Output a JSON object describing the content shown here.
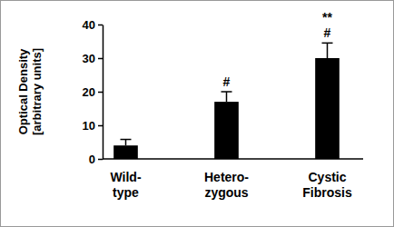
{
  "chart_data": {
    "type": "bar",
    "y_label": "Optical Density\n[arbitrary units]",
    "categories": [
      "Wild-\ntype",
      "Hetero-\nzygous",
      "Cystic\nFibrosis"
    ],
    "values": [
      4,
      17,
      30
    ],
    "errors": [
      1.8,
      3,
      4.5
    ],
    "color": "#000000",
    "ylim": [
      0,
      40
    ],
    "yticks": [
      0,
      10,
      20,
      30,
      40
    ],
    "grid": false,
    "annotations": [
      {
        "text": "#",
        "x": "Hetero-\nzygous"
      },
      {
        "text": "#",
        "x": "Cystic\nFibrosis"
      },
      {
        "text": "**",
        "x": "Cystic\nFibrosis"
      }
    ]
  }
}
